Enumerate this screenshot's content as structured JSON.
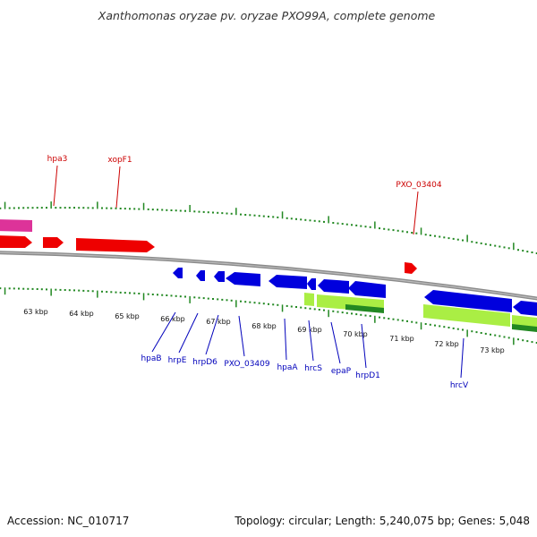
{
  "title": "Xanthomonas oryzae pv. oryzae PXO99A, complete genome",
  "footer": {
    "accession": "Accession: NC_010717",
    "topology": "Topology: circular; Length: 5,240,075 bp; Genes: 5,048"
  },
  "kbp_labels": [
    "63 kbp",
    "64 kbp",
    "65 kbp",
    "66 kbp",
    "67 kbp",
    "68 kbp",
    "69 kbp",
    "70 kbp",
    "71 kbp",
    "72 kbp",
    "73 kbp"
  ],
  "forward_gene_labels": [
    "hpa3",
    "xopF1",
    "PXO_03404"
  ],
  "reverse_gene_labels": [
    "hpaB",
    "hrpE",
    "hrpD6",
    "PXO_03409",
    "hpaA",
    "hrcS",
    "epaP",
    "hrpD1",
    "hrcV"
  ],
  "colors": {
    "forward_gene": "#ee0000",
    "reverse_gene": "#0000dd",
    "pink_feature": "#dd3399",
    "rna_feature": "#aaee44",
    "dark_green_feature": "#228822",
    "tick": "#228822",
    "backbone": "#888888"
  }
}
